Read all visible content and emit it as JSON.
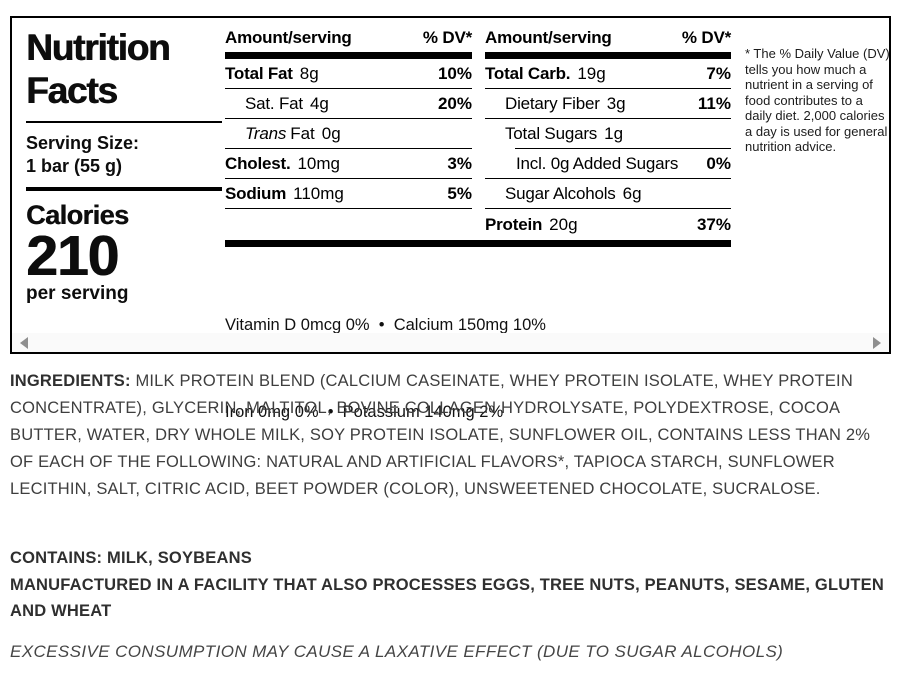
{
  "label": {
    "title": "Nutrition Facts",
    "serving_size_label": "Serving Size:",
    "serving_size_value": "1 bar (55 g)",
    "calories_label": "Calories",
    "calories_value": "210",
    "calories_unit": "per serving",
    "col1": {
      "header_amount": "Amount/serving",
      "header_dv": "% DV*",
      "rows": [
        {
          "name": "Total Fat",
          "amount": "8g",
          "dv": "10%"
        },
        {
          "name": "Sat. Fat",
          "amount": "4g",
          "dv": "20%"
        },
        {
          "prefix_italic": "Trans",
          "name": "Fat",
          "amount": "0g",
          "dv": ""
        },
        {
          "name": "Cholest.",
          "amount": "10mg",
          "dv": "3%"
        },
        {
          "name": "Sodium",
          "amount": "110mg",
          "dv": "5%"
        }
      ]
    },
    "col2": {
      "header_amount": "Amount/serving",
      "header_dv": "% DV*",
      "rows": [
        {
          "name": "Total Carb.",
          "amount": "19g",
          "dv": "7%"
        },
        {
          "name": "Dietary Fiber",
          "amount": "3g",
          "dv": "11%"
        },
        {
          "name": "Total Sugars",
          "amount": "1g",
          "dv": ""
        },
        {
          "name": "Incl. 0g Added Sugars",
          "amount": "",
          "dv": "0%"
        },
        {
          "name": "Sugar Alcohols",
          "amount": "6g",
          "dv": ""
        },
        {
          "name": "Protein",
          "amount": "20g",
          "dv": "37%"
        }
      ]
    },
    "vitamins_line1": "Vitamin D 0mcg 0%  •  Calcium 150mg 10%",
    "vitamins_line2": "Iron 0mg 0%  •  Potassium 140mg 2%",
    "footnote": "* The % Daily Value (DV) tells you how much a nutrient in a serving of food contributes to a daily diet. 2,000 calories a day is used for general nutrition advice."
  },
  "ingredients": {
    "label": "INGREDIENTS:",
    "text": " MILK PROTEIN BLEND (CALCIUM CASEINATE, WHEY PROTEIN ISOLATE, WHEY PROTEIN CONCENTRATE), GLYCERIN, MALTITOL, BOVINE COLLAGEN HYDROLYSATE, POLYDEXTROSE, COCOA BUTTER, WATER, DRY WHOLE MILK, SOY PROTEIN ISOLATE, SUNFLOWER OIL, CONTAINS LESS THAN 2% OF EACH OF THE FOLLOWING: NATURAL AND ARTIFICIAL FLAVORS*, TAPIOCA STARCH, SUNFLOWER LECITHIN, SALT, CITRIC ACID, BEET POWDER (COLOR), UNSWEETENED CHOCOLATE, SUCRALOSE."
  },
  "allergens": {
    "contains": "CONTAINS: MILK, SOYBEANS",
    "facility": "MANUFACTURED IN A FACILITY THAT ALSO PROCESSES EGGS, TREE NUTS, PEANUTS, SESAME, GLUTEN AND WHEAT"
  },
  "disclaimer": "EXCESSIVE CONSUMPTION MAY CAUSE A LAXATIVE EFFECT (DUE TO SUGAR ALCOHOLS)"
}
